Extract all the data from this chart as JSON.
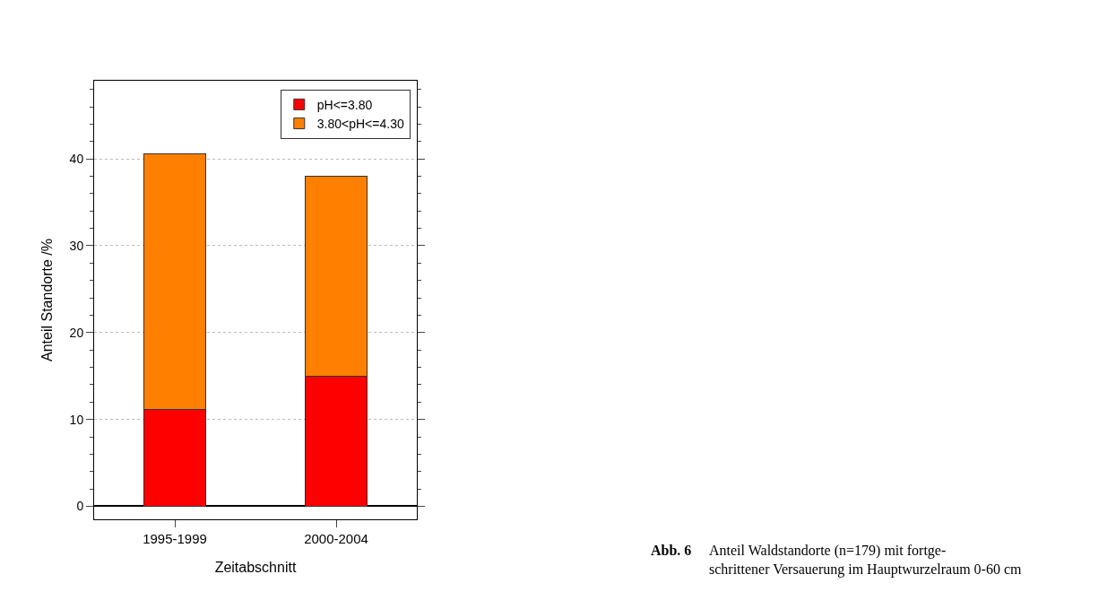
{
  "chart_data": {
    "type": "bar",
    "stacked": true,
    "xlabel": "Zeitabschnitt",
    "ylabel": "Anteil Standorte /%",
    "categories": [
      "1995-1999",
      "2000-2004"
    ],
    "series": [
      {
        "name": "pH<=3.80",
        "color": "#ff0000",
        "values": [
          11.1,
          15.0
        ]
      },
      {
        "name": "3.80<pH<=4.30",
        "color": "#ff8000",
        "values": [
          29.5,
          23.0
        ]
      }
    ],
    "ylim": [
      -1.5,
      49
    ],
    "yticks": [
      0,
      10,
      20,
      30,
      40
    ],
    "grid": "y",
    "legend": "top right",
    "annotations": [
      "Abb. 6",
      "Anteil Waldstandorte (n=179) mit fortge-\nschrittener Versauerung im Hauptwurzelraum 0-60 cm"
    ]
  }
}
